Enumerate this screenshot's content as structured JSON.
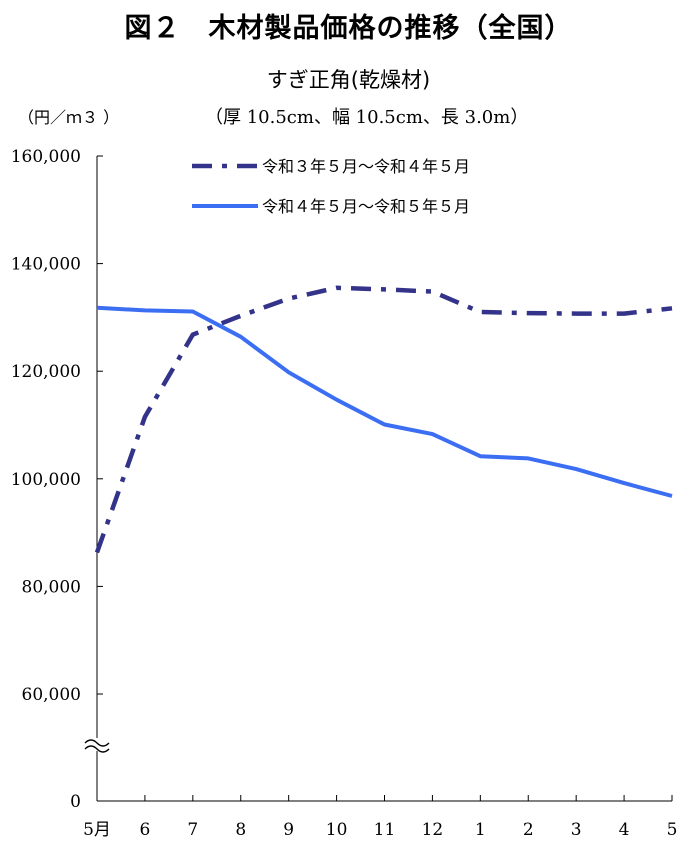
{
  "chart_data": {
    "type": "line",
    "title": "図２　木材製品価格の推移（全国）",
    "subtitle": "すぎ正角(乾燥材)",
    "ylabel": "（円／ｍ３ ）",
    "spec": "（厚 10.5cm、幅 10.5cm、長 3.0m）",
    "categories": [
      "5月",
      "6",
      "7",
      "8",
      "9",
      "10",
      "11",
      "12",
      "1",
      "2",
      "3",
      "4",
      "5"
    ],
    "y_ticks": [
      0,
      60000,
      80000,
      100000,
      120000,
      140000,
      160000
    ],
    "y_tick_labels": [
      "0",
      "60,000",
      "80,000",
      "100,000",
      "120,000",
      "140,000",
      "160,000"
    ],
    "axis_break": "≈",
    "series": [
      {
        "name": "令和３年５月～令和４年５月",
        "color": "#33338a",
        "style": "dash-dot",
        "values": [
          86300,
          111500,
          126800,
          130300,
          133500,
          135500,
          135200,
          134800,
          131000,
          130800,
          130700,
          130700,
          131700
        ]
      },
      {
        "name": "令和４年５月～令和５年５月",
        "color": "#3b6ef2",
        "style": "solid",
        "values": [
          131800,
          131300,
          131100,
          126400,
          119800,
          114700,
          110100,
          108300,
          104200,
          103800,
          101800,
          99200,
          96800
        ]
      }
    ]
  }
}
